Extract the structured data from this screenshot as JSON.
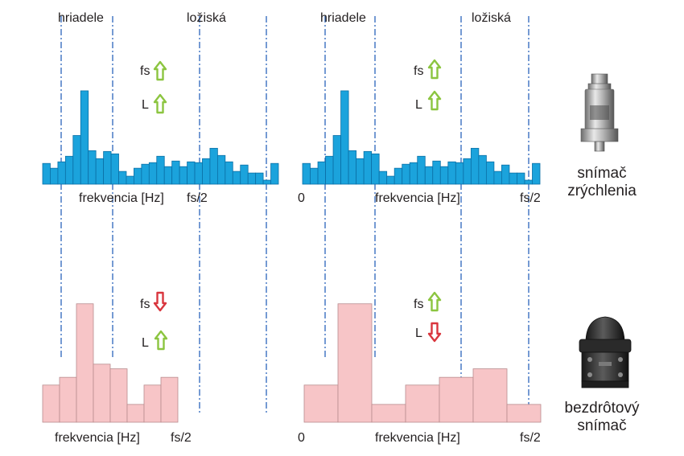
{
  "colors": {
    "blue_bar": "#1ba3dc",
    "blue_bar_stroke": "#0b6fa6",
    "pink_bar": "#f7c5c7",
    "pink_bar_stroke": "#b98c8e",
    "guide_line": "#3a6fc0",
    "arrow_up": "#8cc540",
    "arrow_down": "#d9363e"
  },
  "chart_data": [
    {
      "type": "bar",
      "name": "accelerometer-narrow-band",
      "title": "",
      "xlabel": "frekvencia [Hz]",
      "x_end_label": "fs/2",
      "x_start_label": "",
      "region_labels": [
        "hriadele",
        "ložiská"
      ],
      "values": [
        26,
        20,
        28,
        35,
        61,
        117,
        42,
        32,
        41,
        38,
        16,
        10,
        20,
        25,
        27,
        35,
        22,
        29,
        22,
        28,
        27,
        32,
        45,
        36,
        28,
        16,
        24,
        14,
        14,
        5,
        26
      ],
      "ylim": [
        0,
        125
      ]
    },
    {
      "type": "bar",
      "name": "accelerometer-wide-band",
      "title": "",
      "xlabel": "frekvencia [Hz]",
      "x_end_label": "fs/2",
      "x_start_label": "0",
      "region_labels": [
        "hriadele",
        "ložiská"
      ],
      "values": [
        26,
        20,
        28,
        35,
        61,
        117,
        42,
        32,
        41,
        38,
        16,
        10,
        20,
        25,
        27,
        35,
        22,
        29,
        22,
        28,
        27,
        32,
        45,
        36,
        28,
        16,
        24,
        14,
        14,
        5,
        26
      ],
      "ylim": [
        0,
        125
      ]
    },
    {
      "type": "bar",
      "name": "wireless-narrow-band",
      "title": "",
      "xlabel": "frekvencia [Hz]",
      "x_end_label": "fs/2",
      "x_start_label": "",
      "values": [
        48,
        58,
        153,
        75,
        69,
        23,
        48,
        58
      ],
      "ylim": [
        0,
        160
      ]
    },
    {
      "type": "bar",
      "name": "wireless-wide-band",
      "title": "",
      "xlabel": "frekvencia [Hz]",
      "x_end_label": "fs/2",
      "x_start_label": "0",
      "values": [
        48,
        153,
        23,
        48,
        58,
        69,
        23
      ],
      "ylim": [
        0,
        160
      ]
    }
  ],
  "indicators": {
    "fs_label": "fs",
    "l_label": "L",
    "panels": [
      {
        "fs": "up",
        "l": "up"
      },
      {
        "fs": "up",
        "l": "up"
      },
      {
        "fs": "down",
        "l": "up"
      },
      {
        "fs": "up",
        "l": "down"
      }
    ]
  },
  "sensors": {
    "accelerometer": {
      "line1": "snímač",
      "line2": "zrýchlenia",
      "icon": "accelerometer-icon"
    },
    "wireless": {
      "line1": "bezdrôtový",
      "line2": "snímač",
      "icon": "wireless-sensor-icon"
    }
  }
}
